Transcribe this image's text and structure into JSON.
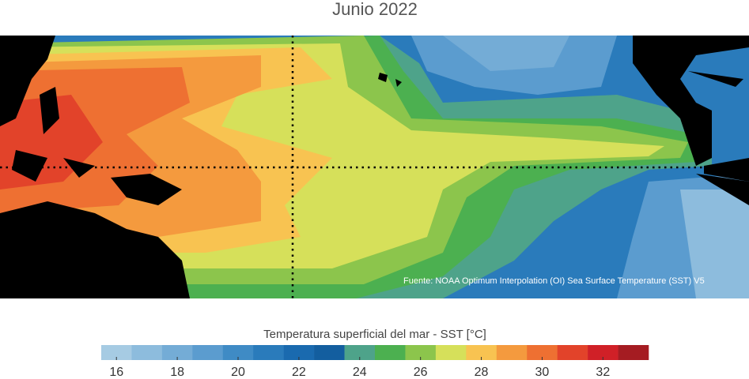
{
  "title": "Junio 2022",
  "source": "Fuente: NOAA Optimum Interpolation (OI) Sea Surface Temperature (SST) V5",
  "colorbar": {
    "label": "Temperatura superficial del mar - SST  [°C]",
    "bins": [
      15.5,
      16.5,
      17.5,
      18.5,
      19.5,
      20.5,
      21.5,
      22.5,
      23.5,
      24.5,
      25.5,
      26.5,
      27.5,
      28.5,
      29.5,
      30.5,
      31.5,
      32.5,
      33.5
    ],
    "colors": [
      "#a6cbe3",
      "#8dbcdd",
      "#74acd6",
      "#5b9ccf",
      "#3f8bc5",
      "#2a7bbb",
      "#1a6aaf",
      "#135e9f",
      "#4ea38a",
      "#4cb050",
      "#8cc54c",
      "#d6e05a",
      "#f8c351",
      "#f49a3e",
      "#ee7032",
      "#e2432a",
      "#d02027",
      "#a51c22"
    ],
    "ticks": [
      16,
      18,
      20,
      22,
      24,
      26,
      28,
      30,
      32
    ]
  }
}
